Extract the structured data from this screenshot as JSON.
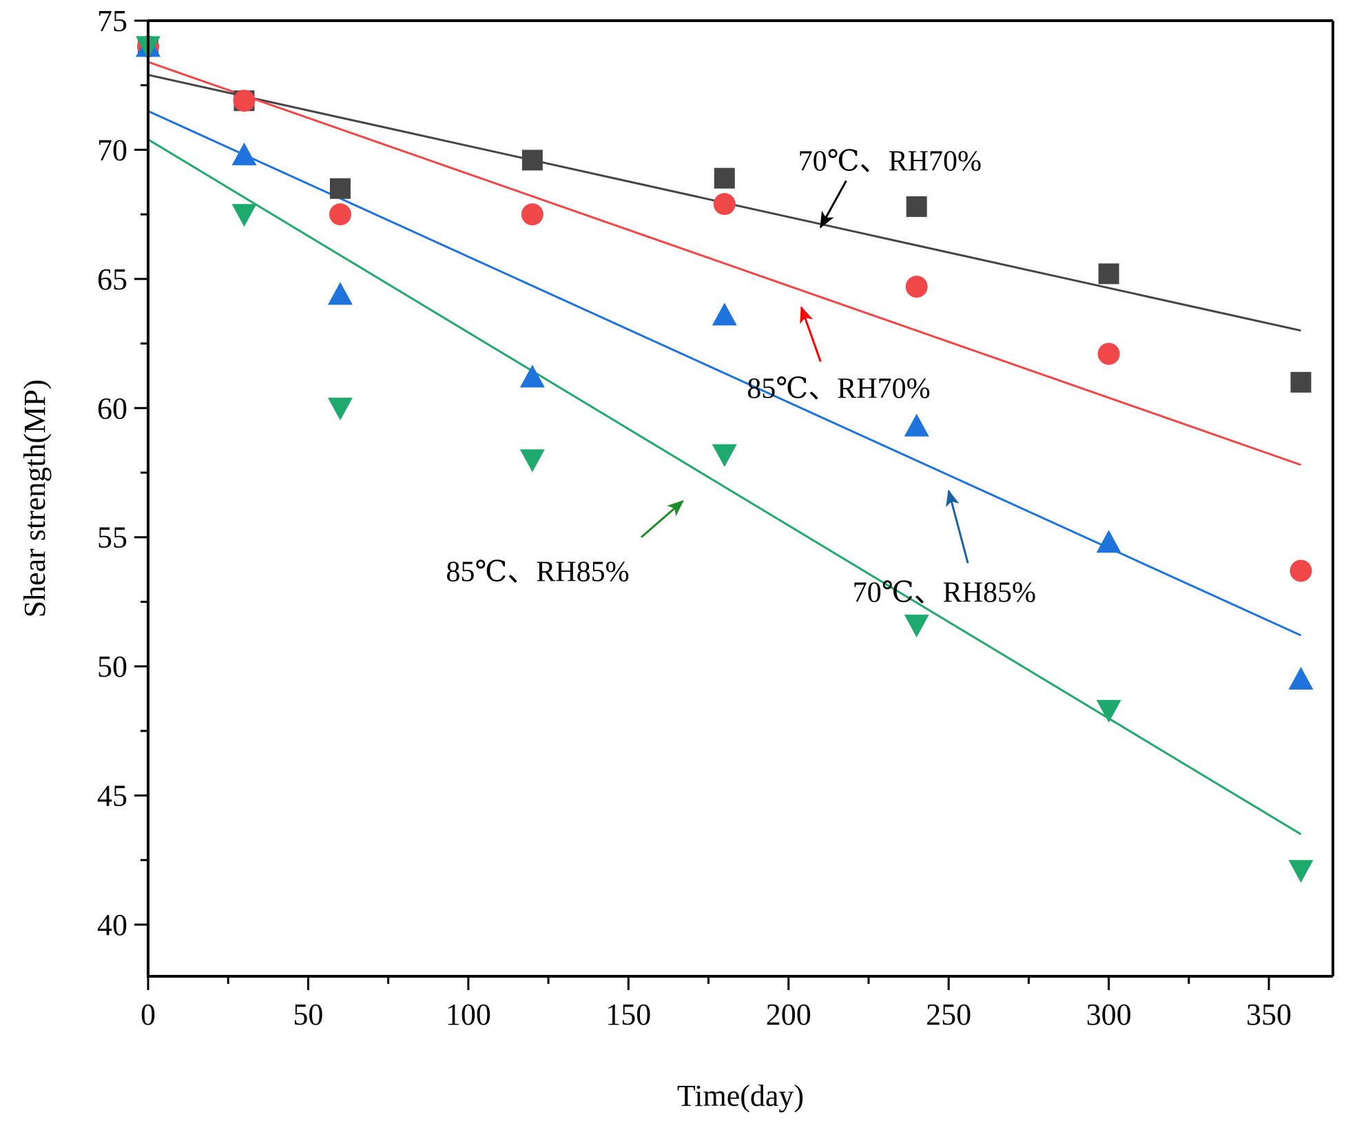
{
  "chart_data": {
    "type": "scatter",
    "title": "",
    "xlabel": "Time(day)",
    "ylabel": "Shear strength(MP)",
    "xlim": [
      0,
      370
    ],
    "ylim": [
      38,
      75
    ],
    "xticks": [
      0,
      50,
      100,
      150,
      200,
      250,
      300,
      350
    ],
    "yticks": [
      40,
      45,
      50,
      55,
      60,
      65,
      70,
      75
    ],
    "x": [
      0,
      30,
      60,
      120,
      180,
      240,
      300,
      360
    ],
    "grid": false,
    "series": [
      {
        "name": "70℃、RH70%",
        "marker": "square",
        "color": "#454545",
        "line_color": "#454545",
        "values": [
          74.0,
          71.9,
          68.5,
          69.6,
          68.9,
          67.8,
          65.2,
          61.0
        ],
        "fit": [
          72.9,
          63.0
        ],
        "label": "70℃、RH70%",
        "arrow_tip": [
          210,
          67.0
        ],
        "arrow_tail": [
          218,
          68.8
        ],
        "label_pos": [
          203,
          69.2
        ],
        "arrow_color": "#000000"
      },
      {
        "name": "85℃、RH70%",
        "marker": "circle",
        "color": "#f04848",
        "line_color": "#f04848",
        "values": [
          74.0,
          71.9,
          67.5,
          67.5,
          67.9,
          64.7,
          62.1,
          53.7
        ],
        "fit": [
          73.4,
          57.8
        ],
        "label": "85℃、RH70%",
        "arrow_tip": [
          204,
          63.9
        ],
        "arrow_tail": [
          210,
          61.8
        ],
        "label_pos": [
          187,
          60.4
        ],
        "arrow_color": "#ff0000"
      },
      {
        "name": "70℃、RH85%",
        "marker": "triangle-up",
        "color": "#1e73dc",
        "line_color": "#1e73dc",
        "values": [
          74.0,
          69.8,
          64.4,
          61.2,
          63.6,
          59.3,
          54.8,
          49.5
        ],
        "fit": [
          71.5,
          51.2
        ],
        "label": "70℃、RH85%",
        "arrow_tip": [
          250,
          56.8
        ],
        "arrow_tail": [
          256,
          54.0
        ],
        "label_pos": [
          220,
          52.5
        ],
        "arrow_color": "#1a62a8"
      },
      {
        "name": "85℃、RH85%",
        "marker": "triangle-down",
        "color": "#1eaa6e",
        "line_color": "#23a86e",
        "values": [
          74.0,
          67.5,
          60.0,
          58.0,
          58.2,
          51.6,
          48.3,
          42.1
        ],
        "fit": [
          70.4,
          43.5
        ],
        "label": "85℃、RH85%",
        "arrow_tip": [
          167,
          56.4
        ],
        "arrow_tail": [
          154,
          55.0
        ],
        "label_pos": [
          93,
          53.3
        ],
        "arrow_color": "#1e8c2a"
      }
    ]
  }
}
